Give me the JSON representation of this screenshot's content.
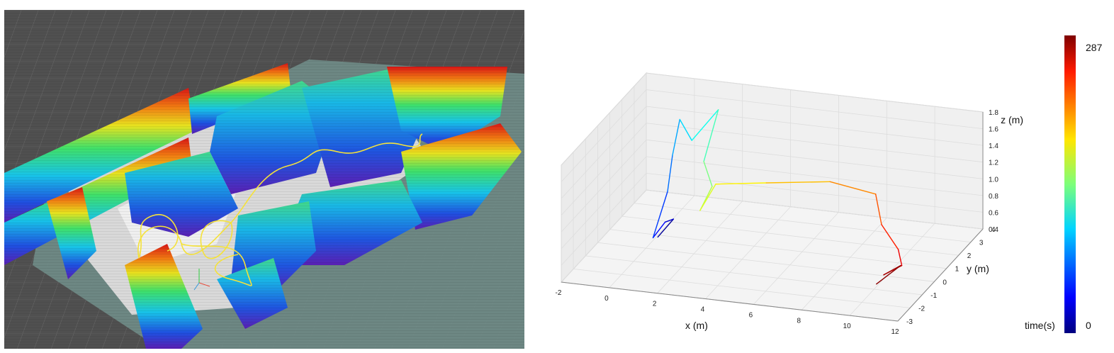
{
  "map_panel": {
    "description_icon": "voxel-occupancy-map-image",
    "trajectory_color": "#f5e23a",
    "floor_color": "#6f8a86",
    "grid_background": "#505050"
  },
  "chart_data": {
    "type": "line",
    "projection": "3d",
    "title": "",
    "xlabel": "x (m)",
    "ylabel": "y (m)",
    "zlabel": "z (m)",
    "xlim": [
      -2,
      12
    ],
    "ylim": [
      -3,
      4
    ],
    "zlim": [
      0.4,
      1.8
    ],
    "x_ticks": [
      "-2",
      "0",
      "2",
      "4",
      "6",
      "8",
      "10",
      "12"
    ],
    "y_ticks": [
      "-3",
      "-2",
      "-1",
      "0",
      "1",
      "2",
      "3",
      "4"
    ],
    "z_ticks": [
      "0.4",
      "0.6",
      "0.8",
      "1.0",
      "1.2",
      "1.4",
      "1.6",
      "1.8"
    ],
    "grid": true,
    "colormap": "jet",
    "color_variable": "time(s)",
    "trajectory": [
      {
        "x": 0.5,
        "y": 0.0,
        "z": 0.55,
        "t": 0
      },
      {
        "x": 0.9,
        "y": 0.5,
        "z": 0.7,
        "t": 15
      },
      {
        "x": 0.4,
        "y": 0.8,
        "z": 0.6,
        "t": 30
      },
      {
        "x": 0.2,
        "y": 0.2,
        "z": 0.5,
        "t": 45
      },
      {
        "x": 0.3,
        "y": 1.2,
        "z": 0.9,
        "t": 60
      },
      {
        "x": 0.1,
        "y": 2.0,
        "z": 1.2,
        "t": 75
      },
      {
        "x": 0.0,
        "y": 2.8,
        "z": 1.5,
        "t": 90
      },
      {
        "x": 0.6,
        "y": 2.6,
        "z": 1.3,
        "t": 105
      },
      {
        "x": 1.4,
        "y": 3.2,
        "z": 1.6,
        "t": 120
      },
      {
        "x": 1.2,
        "y": 2.4,
        "z": 1.1,
        "t": 135
      },
      {
        "x": 1.8,
        "y": 1.9,
        "z": 0.9,
        "t": 150
      },
      {
        "x": 1.6,
        "y": 1.3,
        "z": 0.7,
        "t": 165
      },
      {
        "x": 2.0,
        "y": 1.8,
        "z": 0.95,
        "t": 175
      },
      {
        "x": 4.0,
        "y": 2.0,
        "z": 1.0,
        "t": 190
      },
      {
        "x": 6.5,
        "y": 2.3,
        "z": 1.05,
        "t": 205
      },
      {
        "x": 8.5,
        "y": 2.1,
        "z": 1.0,
        "t": 220
      },
      {
        "x": 9.2,
        "y": 1.2,
        "z": 0.8,
        "t": 235
      },
      {
        "x": 10.4,
        "y": 0.2,
        "z": 0.7,
        "t": 250
      },
      {
        "x": 10.8,
        "y": -0.3,
        "z": 0.6,
        "t": 262
      },
      {
        "x": 10.3,
        "y": -0.8,
        "z": 0.55,
        "t": 272
      },
      {
        "x": 10.9,
        "y": -0.6,
        "z": 0.65,
        "t": 280
      },
      {
        "x": 10.2,
        "y": -1.2,
        "z": 0.5,
        "t": 287
      }
    ],
    "colorbar": {
      "min": 0,
      "max": 287,
      "min_label": "0",
      "max_label": "287",
      "label": "time(s)"
    }
  }
}
